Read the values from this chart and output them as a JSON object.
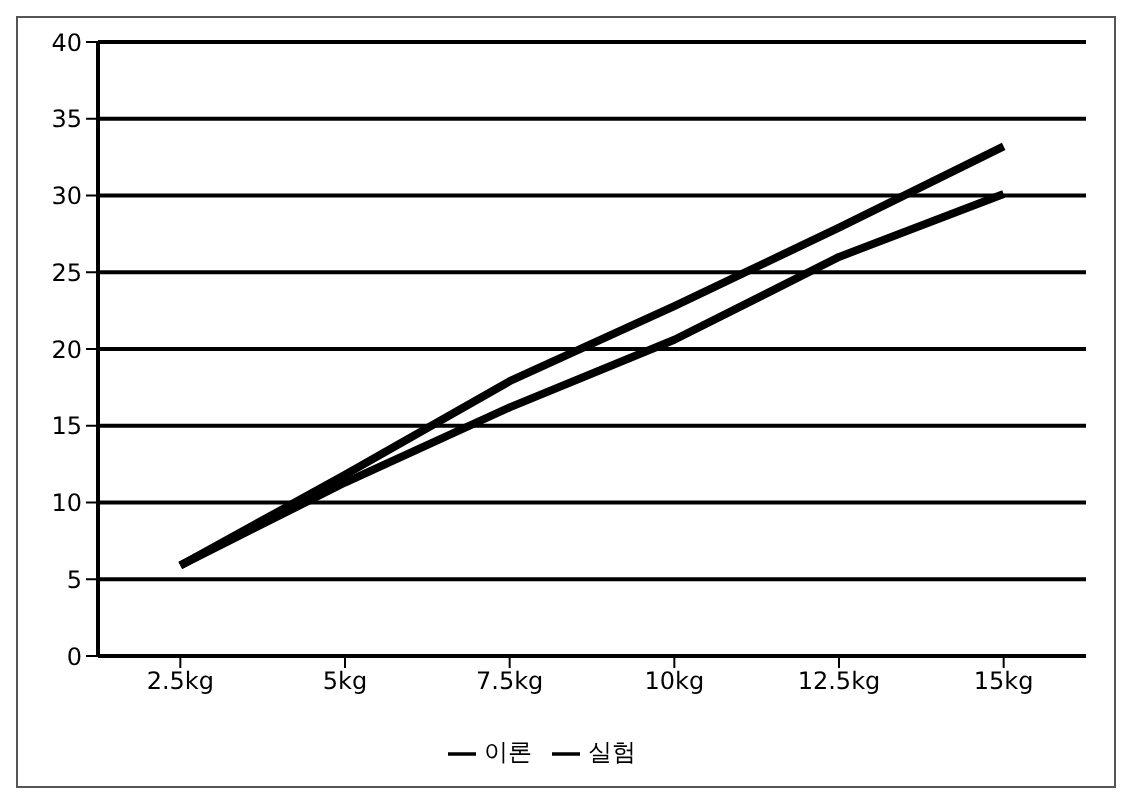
{
  "chart_data": {
    "type": "line",
    "categories": [
      "2.5kg",
      "5kg",
      "7.5kg",
      "10kg",
      "12.5kg",
      "15kg"
    ],
    "series": [
      {
        "name": "이론",
        "color": "#000000",
        "values": [
          5.9,
          11.3,
          16.2,
          20.6,
          26.0,
          30.1
        ]
      },
      {
        "name": "실험",
        "color": "#000000",
        "values": [
          5.9,
          11.8,
          17.9,
          22.8,
          27.9,
          33.2
        ]
      }
    ],
    "ylim": [
      0,
      40
    ],
    "yticks": [
      0,
      5,
      10,
      15,
      20,
      25,
      30,
      35,
      40
    ],
    "grid": "y",
    "legend": "bottom",
    "marker": "none",
    "line_style": "solid"
  }
}
